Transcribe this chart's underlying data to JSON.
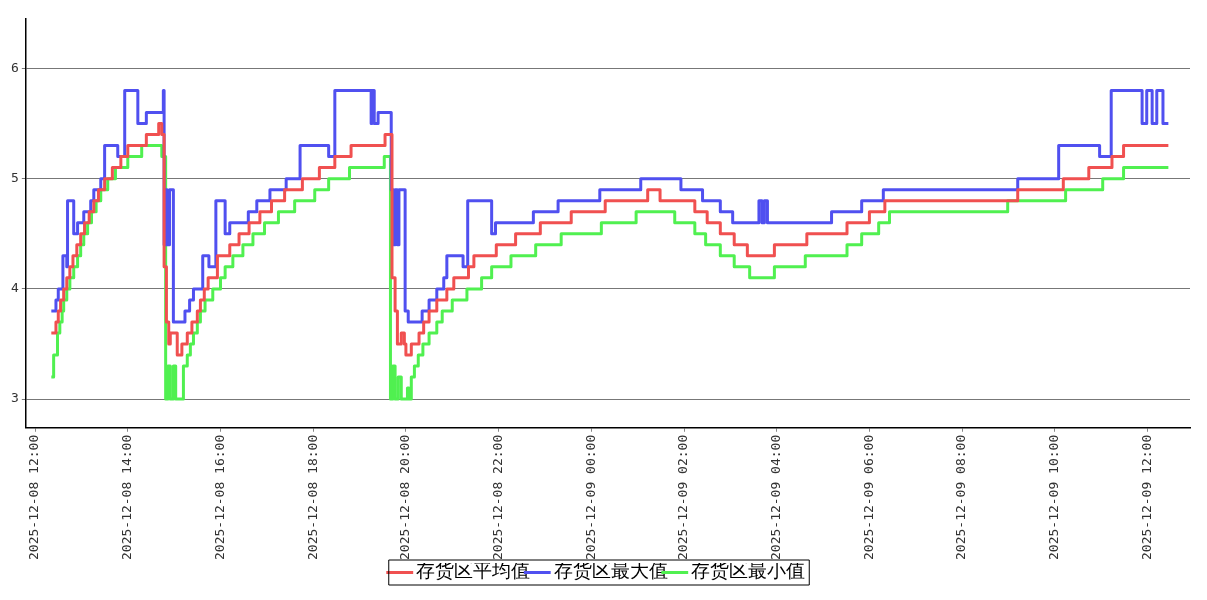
{
  "chart_data": {
    "type": "step",
    "xlim": [
      "2025-12-08T11:48",
      "2025-12-09T12:55"
    ],
    "xticks": [
      {
        "value": "2025-12-08T12:00",
        "label": "2025-12-08 12:00"
      },
      {
        "value": "2025-12-08T14:00",
        "label": "2025-12-08 14:00"
      },
      {
        "value": "2025-12-08T16:00",
        "label": "2025-12-08 16:00"
      },
      {
        "value": "2025-12-08T18:00",
        "label": "2025-12-08 18:00"
      },
      {
        "value": "2025-12-08T20:00",
        "label": "2025-12-08 20:00"
      },
      {
        "value": "2025-12-08T22:00",
        "label": "2025-12-08 22:00"
      },
      {
        "value": "2025-12-09T00:00",
        "label": "2025-12-09 00:00"
      },
      {
        "value": "2025-12-09T02:00",
        "label": "2025-12-09 02:00"
      },
      {
        "value": "2025-12-09T04:00",
        "label": "2025-12-09 04:00"
      },
      {
        "value": "2025-12-09T06:00",
        "label": "2025-12-09 06:00"
      },
      {
        "value": "2025-12-09T08:00",
        "label": "2025-12-09 08:00"
      },
      {
        "value": "2025-12-09T10:00",
        "label": "2025-12-09 10:00"
      },
      {
        "value": "2025-12-09T12:00",
        "label": "2025-12-09 12:00"
      }
    ],
    "ylim": [
      2.74,
      6.45
    ],
    "yticks": [
      3,
      4,
      5,
      6
    ],
    "grid": "y",
    "legend": "bottom",
    "series": [
      {
        "name": "存货区平均值",
        "color": "#f05050",
        "x": [
          "2025-12-08T12:21",
          "2025-12-08T12:27",
          "2025-12-08T12:30",
          "2025-12-08T12:33",
          "2025-12-08T12:37",
          "2025-12-08T12:41",
          "2025-12-08T12:45",
          "2025-12-08T12:49",
          "2025-12-08T12:54",
          "2025-12-08T12:59",
          "2025-12-08T13:04",
          "2025-12-08T13:10",
          "2025-12-08T13:16",
          "2025-12-08T13:22",
          "2025-12-08T13:30",
          "2025-12-08T13:40",
          "2025-12-08T13:51",
          "2025-12-08T14:00",
          "2025-12-08T14:24",
          "2025-12-08T14:40",
          "2025-12-08T14:44",
          "2025-12-08T14:47",
          "2025-12-08T14:50",
          "2025-12-08T14:53",
          "2025-12-08T14:55",
          "2025-12-08T15:04",
          "2025-12-08T15:10",
          "2025-12-08T15:17",
          "2025-12-08T15:23",
          "2025-12-08T15:30",
          "2025-12-08T15:34",
          "2025-12-08T15:39",
          "2025-12-08T15:44",
          "2025-12-08T15:56",
          "2025-12-08T16:12",
          "2025-12-08T16:24",
          "2025-12-08T16:37",
          "2025-12-08T16:51",
          "2025-12-08T17:06",
          "2025-12-08T17:23",
          "2025-12-08T17:46",
          "2025-12-08T18:08",
          "2025-12-08T18:28",
          "2025-12-08T18:49",
          "2025-12-08T19:33",
          "2025-12-08T19:42",
          "2025-12-08T19:46",
          "2025-12-08T19:49",
          "2025-12-08T19:54",
          "2025-12-08T19:58",
          "2025-12-08T20:00",
          "2025-12-08T20:07",
          "2025-12-08T20:17",
          "2025-12-08T20:23",
          "2025-12-08T20:30",
          "2025-12-08T20:40",
          "2025-12-08T20:53",
          "2025-12-08T21:02",
          "2025-12-08T21:21",
          "2025-12-08T21:28",
          "2025-12-08T21:57",
          "2025-12-08T22:22",
          "2025-12-08T22:54",
          "2025-12-08T23:34",
          "2025-12-09T00:18",
          "2025-12-09T01:13",
          "2025-12-09T01:29",
          "2025-12-09T02:14",
          "2025-12-09T02:30",
          "2025-12-09T02:47",
          "2025-12-09T03:05",
          "2025-12-09T03:22",
          "2025-12-09T03:57",
          "2025-12-09T04:39",
          "2025-12-09T05:31",
          "2025-12-09T06:00",
          "2025-12-09T06:20",
          "2025-12-09T09:12",
          "2025-12-09T10:11",
          "2025-12-09T10:44",
          "2025-12-09T11:14",
          "2025-12-09T11:29",
          "2025-12-09T12:27"
        ],
        "values": [
          3.6,
          3.7,
          3.8,
          3.9,
          4.0,
          4.1,
          4.2,
          4.3,
          4.4,
          4.5,
          4.6,
          4.7,
          4.8,
          4.9,
          5.0,
          5.1,
          5.2,
          5.3,
          5.4,
          5.5,
          5.4,
          4.2,
          3.7,
          3.5,
          3.6,
          3.4,
          3.5,
          3.6,
          3.7,
          3.8,
          3.9,
          4.0,
          4.1,
          4.3,
          4.4,
          4.5,
          4.6,
          4.7,
          4.8,
          4.9,
          5.0,
          5.1,
          5.2,
          5.3,
          5.4,
          4.1,
          3.8,
          3.5,
          3.6,
          3.5,
          3.4,
          3.5,
          3.6,
          3.7,
          3.8,
          3.9,
          4.0,
          4.1,
          4.2,
          4.3,
          4.4,
          4.5,
          4.6,
          4.7,
          4.8,
          4.9,
          4.8,
          4.7,
          4.6,
          4.5,
          4.4,
          4.3,
          4.4,
          4.5,
          4.6,
          4.7,
          4.8,
          4.9,
          5.0,
          5.1,
          5.2,
          5.3,
          5.3
        ]
      },
      {
        "name": "存货区最大值",
        "color": "#5050f0",
        "x": [
          "2025-12-08T12:21",
          "2025-12-08T12:27",
          "2025-12-08T12:30",
          "2025-12-08T12:36",
          "2025-12-08T12:41",
          "2025-12-08T12:42",
          "2025-12-08T12:50",
          "2025-12-08T12:55",
          "2025-12-08T13:03",
          "2025-12-08T13:12",
          "2025-12-08T13:16",
          "2025-12-08T13:25",
          "2025-12-08T13:30",
          "2025-12-08T13:47",
          "2025-12-08T13:56",
          "2025-12-08T14:13",
          "2025-12-08T14:24",
          "2025-12-08T14:46",
          "2025-12-08T14:47",
          "2025-12-08T14:49",
          "2025-12-08T14:51",
          "2025-12-08T14:54",
          "2025-12-08T14:59",
          "2025-12-08T15:14",
          "2025-12-08T15:20",
          "2025-12-08T15:25",
          "2025-12-08T15:37",
          "2025-12-08T15:45",
          "2025-12-08T15:54",
          "2025-12-08T16:06",
          "2025-12-08T16:12",
          "2025-12-08T16:36",
          "2025-12-08T16:47",
          "2025-12-08T17:04",
          "2025-12-08T17:25",
          "2025-12-08T17:43",
          "2025-12-08T18:20",
          "2025-12-08T18:28",
          "2025-12-08T19:15",
          "2025-12-08T19:16",
          "2025-12-08T19:19",
          "2025-12-08T19:24",
          "2025-12-08T19:41",
          "2025-12-08T19:44",
          "2025-12-08T19:46",
          "2025-12-08T19:49",
          "2025-12-08T19:51",
          "2025-12-08T19:59",
          "2025-12-08T20:03",
          "2025-12-08T20:21",
          "2025-12-08T20:30",
          "2025-12-08T20:40",
          "2025-12-08T20:49",
          "2025-12-08T20:53",
          "2025-12-08T21:14",
          "2025-12-08T21:20",
          "2025-12-08T21:51",
          "2025-12-08T21:56",
          "2025-12-08T22:45",
          "2025-12-08T23:17",
          "2025-12-09T00:11",
          "2025-12-09T01:04",
          "2025-12-09T01:56",
          "2025-12-09T02:24",
          "2025-12-09T02:47",
          "2025-12-09T03:03",
          "2025-12-09T03:37",
          "2025-12-09T03:41",
          "2025-12-09T03:44",
          "2025-12-09T03:48",
          "2025-12-09T05:11",
          "2025-12-09T05:50",
          "2025-12-09T06:18",
          "2025-12-09T09:12",
          "2025-12-09T10:05",
          "2025-12-09T10:58",
          "2025-12-09T11:13",
          "2025-12-09T11:53",
          "2025-12-09T11:59",
          "2025-12-09T12:06",
          "2025-12-09T12:12",
          "2025-12-09T12:20",
          "2025-12-09T12:27"
        ],
        "values": [
          3.8,
          3.9,
          4.0,
          4.3,
          4.2,
          4.8,
          4.5,
          4.6,
          4.7,
          4.8,
          4.9,
          5.0,
          5.3,
          5.2,
          5.8,
          5.5,
          5.6,
          5.8,
          4.4,
          4.9,
          4.4,
          4.9,
          3.7,
          3.8,
          3.9,
          4.0,
          4.3,
          4.2,
          4.8,
          4.5,
          4.6,
          4.7,
          4.8,
          4.9,
          5.0,
          5.3,
          5.2,
          5.8,
          5.5,
          5.8,
          5.5,
          5.6,
          4.9,
          4.4,
          4.9,
          4.4,
          4.9,
          3.8,
          3.7,
          3.8,
          3.9,
          4.0,
          4.1,
          4.3,
          4.2,
          4.8,
          4.5,
          4.6,
          4.7,
          4.8,
          4.9,
          5.0,
          4.9,
          4.8,
          4.7,
          4.6,
          4.8,
          4.6,
          4.8,
          4.6,
          4.7,
          4.8,
          4.9,
          5.0,
          5.3,
          5.2,
          5.8,
          5.5,
          5.8,
          5.5,
          5.8,
          5.5,
          5.5
        ]
      },
      {
        "name": "存货区最小值",
        "color": "#50f050",
        "x": [
          "2025-12-08T12:21",
          "2025-12-08T12:24",
          "2025-12-08T12:29",
          "2025-12-08T12:32",
          "2025-12-08T12:35",
          "2025-12-08T12:37",
          "2025-12-08T12:41",
          "2025-12-08T12:45",
          "2025-12-08T12:50",
          "2025-12-08T12:55",
          "2025-12-08T12:59",
          "2025-12-08T13:03",
          "2025-12-08T13:08",
          "2025-12-08T13:13",
          "2025-12-08T13:19",
          "2025-12-08T13:25",
          "2025-12-08T13:34",
          "2025-12-08T13:44",
          "2025-12-08T14:00",
          "2025-12-08T14:18",
          "2025-12-08T14:44",
          "2025-12-08T14:49",
          "2025-12-08T14:52",
          "2025-12-08T14:55",
          "2025-12-08T14:59",
          "2025-12-08T15:02",
          "2025-12-08T15:12",
          "2025-12-08T15:17",
          "2025-12-08T15:21",
          "2025-12-08T15:25",
          "2025-12-08T15:30",
          "2025-12-08T15:34",
          "2025-12-08T15:40",
          "2025-12-08T15:50",
          "2025-12-08T16:00",
          "2025-12-08T16:06",
          "2025-12-08T16:16",
          "2025-12-08T16:29",
          "2025-12-08T16:42",
          "2025-12-08T16:57",
          "2025-12-08T17:15",
          "2025-12-08T17:36",
          "2025-12-08T18:02",
          "2025-12-08T18:20",
          "2025-12-08T18:47",
          "2025-12-08T19:32",
          "2025-12-08T19:40",
          "2025-12-08T19:43",
          "2025-12-08T19:46",
          "2025-12-08T19:50",
          "2025-12-08T19:54",
          "2025-12-08T20:02",
          "2025-12-08T20:04",
          "2025-12-08T20:07",
          "2025-12-08T20:11",
          "2025-12-08T20:16",
          "2025-12-08T20:22",
          "2025-12-08T20:30",
          "2025-12-08T20:40",
          "2025-12-08T20:47",
          "2025-12-08T21:00",
          "2025-12-08T21:19",
          "2025-12-08T21:38",
          "2025-12-08T21:51",
          "2025-12-08T22:16",
          "2025-12-08T22:48",
          "2025-12-08T23:21",
          "2025-12-09T00:13",
          "2025-12-09T00:58",
          "2025-12-09T01:48",
          "2025-12-09T02:14",
          "2025-12-09T02:28",
          "2025-12-09T02:47",
          "2025-12-09T03:05",
          "2025-12-09T03:25",
          "2025-12-09T03:57",
          "2025-12-09T04:37",
          "2025-12-09T05:31",
          "2025-12-09T05:50",
          "2025-12-09T06:12",
          "2025-12-09T06:26",
          "2025-12-09T08:59",
          "2025-12-09T10:14",
          "2025-12-09T11:02",
          "2025-12-09T11:29",
          "2025-12-09T12:27"
        ],
        "values": [
          3.2,
          3.4,
          3.6,
          3.7,
          3.8,
          3.9,
          4.0,
          4.1,
          4.2,
          4.3,
          4.4,
          4.5,
          4.6,
          4.7,
          4.8,
          4.9,
          5.0,
          5.1,
          5.2,
          5.3,
          5.2,
          3.0,
          3.3,
          3.0,
          3.3,
          3.0,
          3.3,
          3.4,
          3.5,
          3.6,
          3.7,
          3.8,
          3.9,
          4.0,
          4.1,
          4.2,
          4.3,
          4.4,
          4.5,
          4.6,
          4.7,
          4.8,
          4.9,
          5.0,
          5.1,
          5.2,
          3.0,
          3.3,
          3.0,
          3.2,
          3.0,
          3.1,
          3.0,
          3.2,
          3.3,
          3.4,
          3.5,
          3.6,
          3.7,
          3.8,
          3.9,
          4.0,
          4.1,
          4.2,
          4.3,
          4.4,
          4.5,
          4.6,
          4.7,
          4.6,
          4.5,
          4.4,
          4.3,
          4.2,
          4.1,
          4.2,
          4.3,
          4.4,
          4.5,
          4.6,
          4.7,
          4.8,
          4.9,
          5.0,
          5.1,
          5.1
        ]
      }
    ]
  }
}
